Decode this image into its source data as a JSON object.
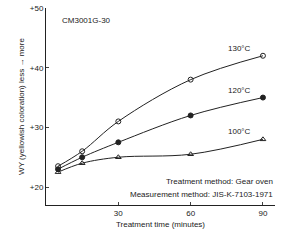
{
  "chart_data": {
    "type": "line",
    "title": "CM3001G-30",
    "x_label": "Treatment time (minutes)",
    "y_label": "WY (yellowish coloration) less → more",
    "x": [
      5,
      15,
      30,
      60,
      90
    ],
    "series": [
      {
        "name": "130°C",
        "color": "#222222",
        "marker": "circle-open",
        "line_style": "solid",
        "values": [
          23.5,
          26,
          31,
          38,
          42
        ]
      },
      {
        "name": "120°C",
        "color": "#222222",
        "marker": "circle",
        "line_style": "solid",
        "values": [
          23,
          25,
          27.5,
          32,
          35
        ]
      },
      {
        "name": "100°C",
        "color": "#222222",
        "marker": "triangle-up-open",
        "line_style": "solid",
        "values": [
          22.5,
          24,
          25,
          25.5,
          28
        ]
      }
    ],
    "xlim": [
      0,
      95
    ],
    "xticks": [
      30,
      60,
      90
    ],
    "ylim": [
      17,
      50
    ],
    "yticks": [
      {
        "value": 20,
        "label": "+20"
      },
      {
        "value": 30,
        "label": "+30"
      },
      {
        "value": 40,
        "label": "+40"
      },
      {
        "value": 50,
        "label": "+50"
      }
    ],
    "grid": false,
    "annotations": [
      "Treatment method: Gear oven",
      "Measurement method: JIS-K-7103-1971"
    ]
  }
}
